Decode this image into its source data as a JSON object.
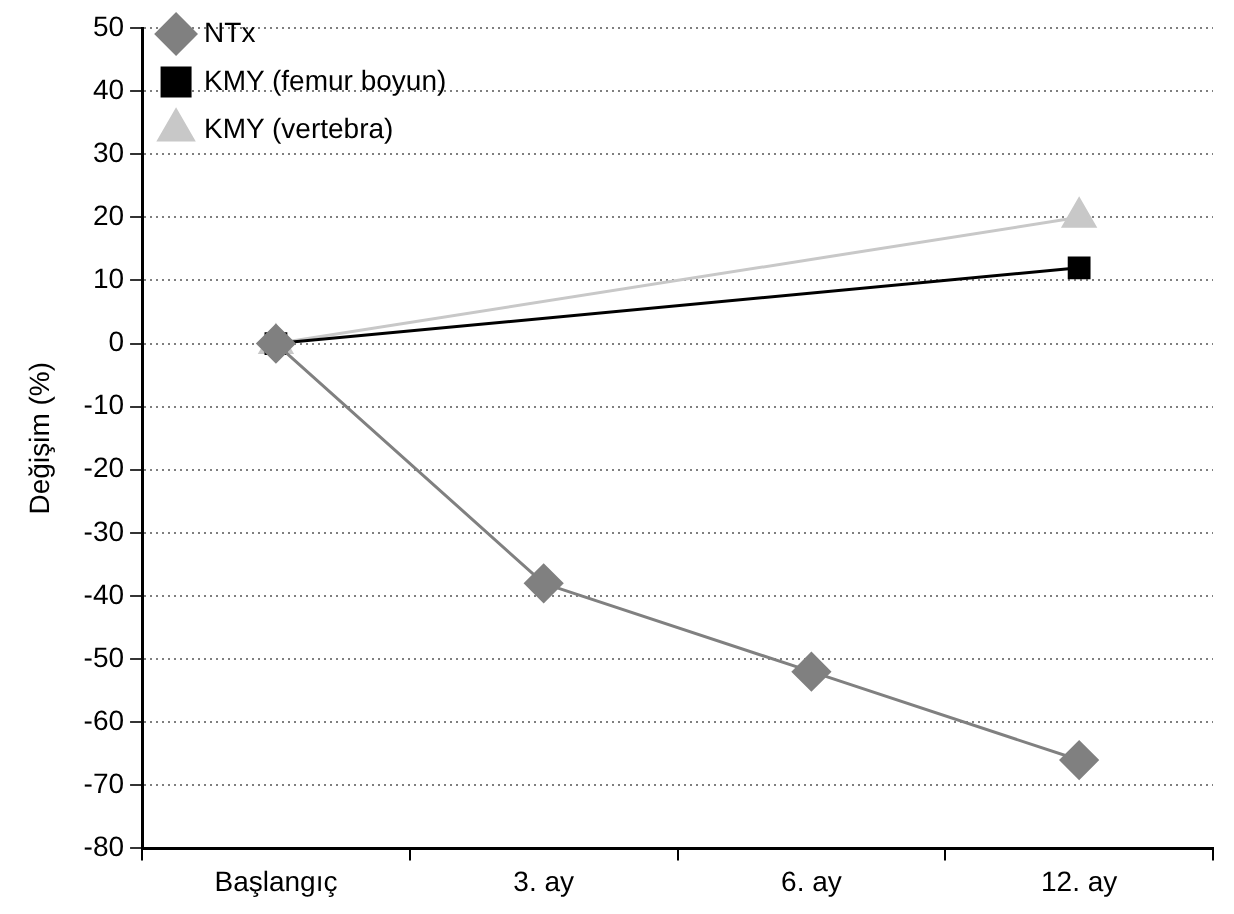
{
  "chart_data": {
    "type": "line",
    "ylabel": "Değişim (%)",
    "categories": [
      "Başlangıç",
      "3. ay",
      "6. ay",
      "12. ay"
    ],
    "series": [
      {
        "name": "NTx",
        "color": "#808080",
        "marker": "diamond",
        "values": [
          0,
          -38,
          -52,
          -66
        ]
      },
      {
        "name": "KMY (femur boyun)",
        "color": "#000000",
        "marker": "square",
        "values": [
          0,
          null,
          null,
          12
        ]
      },
      {
        "name": "KMY (vertebra)",
        "color": "#c8c8c8",
        "marker": "triangle",
        "values": [
          0,
          null,
          null,
          20
        ]
      }
    ],
    "ylim": [
      -80,
      50
    ],
    "yticks": [
      -80,
      -70,
      -60,
      -50,
      -40,
      -30,
      -20,
      -10,
      0,
      10,
      20,
      30,
      40,
      50
    ],
    "grid": "y",
    "legend": "top left",
    "line_style": "solid"
  }
}
